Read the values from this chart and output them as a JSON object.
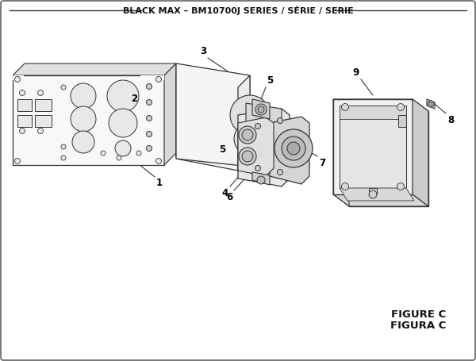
{
  "title": "BLACK MAX – BM10700J SERIES / SÉRIE / SERIE",
  "figure_label": "FIGURE C",
  "figura_label": "FIGURA C",
  "bg_color": "#ffffff",
  "line_color": "#333333",
  "part_outline": "#333333",
  "title_fontsize": 8.0,
  "label_fontsize": 8.5,
  "figure_label_fontsize": 9.5
}
